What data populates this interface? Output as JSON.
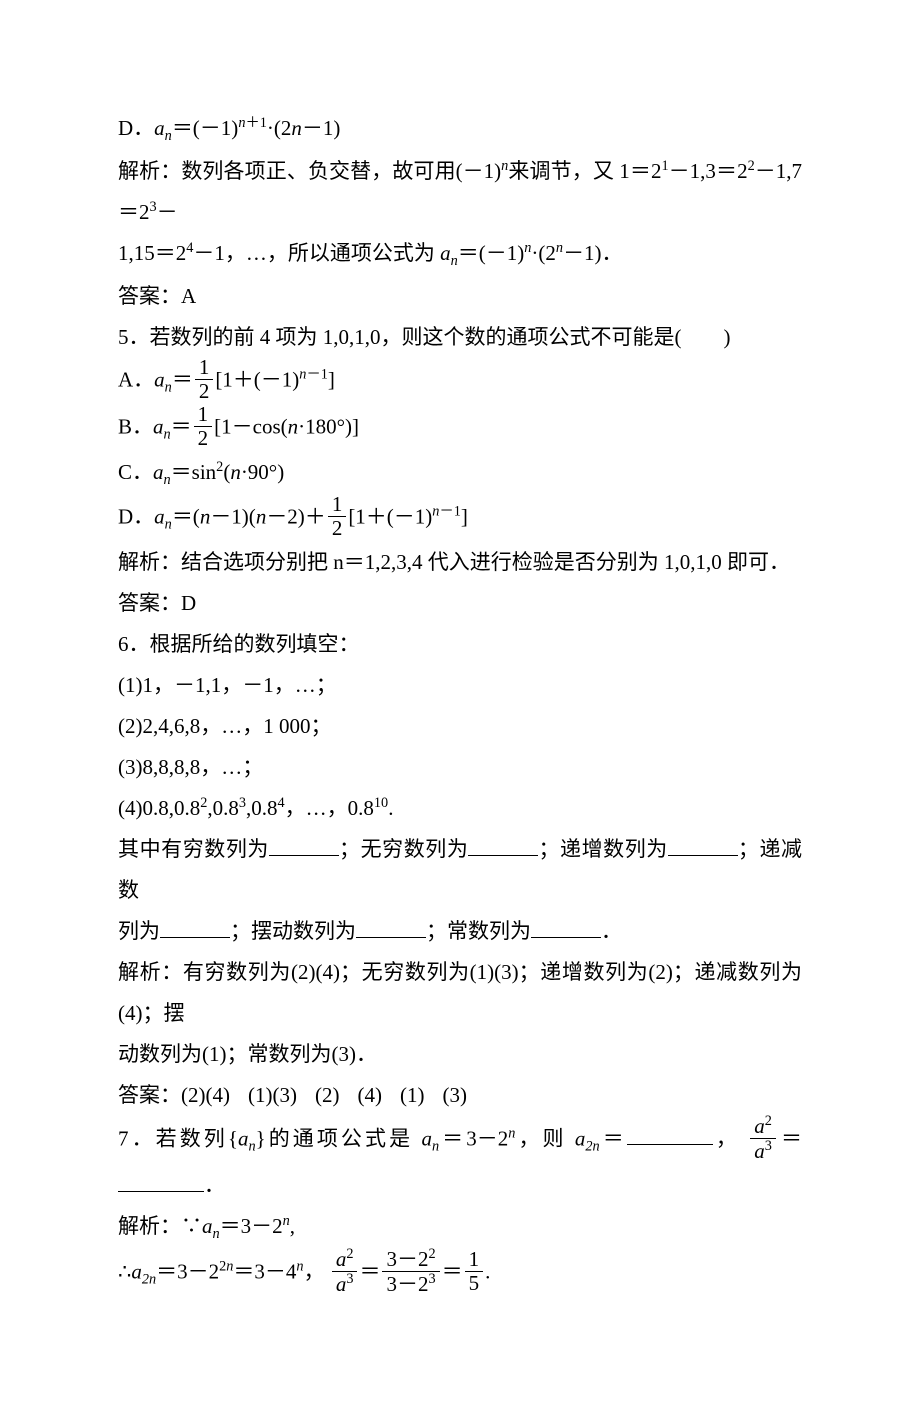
{
  "colors": {
    "text": "#000000",
    "background": "#ffffff",
    "rule": "#000000"
  },
  "typography": {
    "body_pt": 16,
    "line_height": 1.95,
    "font_family": "Times New Roman / SimSun serif"
  },
  "lines": {
    "l1_pre": "D．",
    "l1_formula": "aₙ = (−1)ⁿ⁺¹·(2n − 1)",
    "l2_pre": "解析：数列各项正、负交替，故可用(－1)",
    "l2_mid": "来调节，又 1＝2",
    "l2_tail1": "－1,3＝2",
    "l2_tail2": "－1,7＝2",
    "l2_tail3": "－",
    "l3_pre": "1,15＝2",
    "l3_mid": "－1，…，所以通项公式为 ",
    "l3_f": "aₙ＝(－1)ⁿ·(2ⁿ－1)．",
    "l4": "答案：A",
    "q5_stem": "5．若数列的前 4 项为 1,0,1,0，则这个数的通项公式不可能是(　　)",
    "q5A_pre": "A．",
    "q5A_half_num": "1",
    "q5A_half_den": "2",
    "q5A_rest": "[1＋(−1)ⁿ⁻¹]",
    "q5B_pre": "B．",
    "q5B_rest": "[1－cos(n·180°)]",
    "q5C_pre": "C．",
    "q5C_f": "aₙ＝sin²(n·90°)",
    "q5D_pre": "D．",
    "q5D_lead": "aₙ＝(n−1)(n−2)＋",
    "q5D_rest": "[1＋(−1)ⁿ⁻¹]",
    "q5_exp": "解析：结合选项分别把 n＝1,2,3,4 代入进行检验是否分别为 1,0,1,0 即可．",
    "q5_ans": "答案：D",
    "q6_stem": "6．根据所给的数列填空：",
    "q6_1": "(1)1，－1,1，－1，…；",
    "q6_2": "(2)2,4,6,8，…，1 000；",
    "q6_3": "(3)8,8,8,8，…；",
    "q6_4_a": "(4)0.8,0.8",
    "q6_4_b": ",0.8",
    "q6_4_c": "，…，0.8",
    "q6_4_d": ".",
    "q6_blanks_a": "其中有穷数列为",
    "q6_blanks_b": "；无穷数列为",
    "q6_blanks_c": "；递增数列为",
    "q6_blanks_d": "；递减数",
    "q6_blanks_e": "列为",
    "q6_blanks_f": "；摆动数列为",
    "q6_blanks_g": "；常数列为",
    "q6_blanks_h": "．",
    "q6_exp": "解析：有穷数列为(2)(4)；无穷数列为(1)(3)；递增数列为(2)；递减数列为(4)；摆",
    "q6_exp2": "动数列为(1)；常数列为(3)．",
    "q6_ans_pre": "答案：",
    "q6_ans_items": [
      "(2)(4)",
      "(1)(3)",
      "(2)",
      "(4)",
      "(1)",
      "(3)"
    ],
    "q7_a": "7．若数列{",
    "q7_b": "}的通项公式是 ",
    "q7_c": "＝3－2",
    "q7_d": "，则 ",
    "q7_e": "＝",
    "q7_f": "，",
    "q7_frac_num": "a²",
    "q7_frac_den": "a³",
    "q7_g": "＝",
    "q7_h": "．",
    "q7_exp1_a": "解析：∵",
    "q7_exp1_b": "＝3－2",
    "q7_exp1_c": ",",
    "q7_exp2_a": "∴",
    "q7_exp2_b": "＝3－2",
    "q7_exp2_c": "＝3－4",
    "q7_exp2_d": "，",
    "q7_r_num": "3－2²",
    "q7_r_den": "3－2³",
    "q7_r_val_num": "1",
    "q7_r_val_den": "5",
    "q7_r_tail": "."
  }
}
